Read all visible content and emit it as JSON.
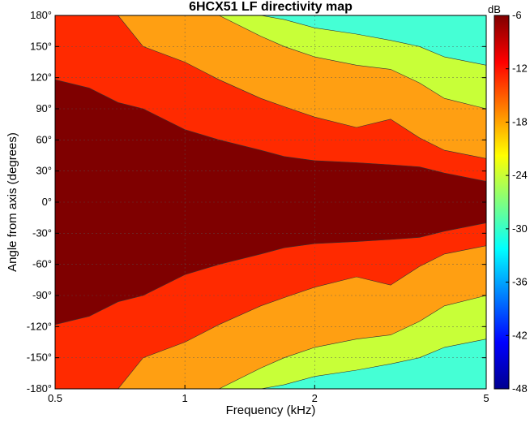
{
  "chart_data": {
    "type": "heatmap",
    "title": "6HCX51 LF directivity map",
    "xlabel": "Frequency (kHz)",
    "ylabel": "Angle from axis (degrees)",
    "xscale": "log",
    "xlim": [
      0.5,
      5
    ],
    "ylim": [
      -180,
      180
    ],
    "x_ticks": [
      0.5,
      1,
      2,
      5
    ],
    "x_tick_labels": [
      "0.5",
      "1",
      "2",
      "5"
    ],
    "y_ticks": [
      180,
      150,
      120,
      90,
      60,
      30,
      0,
      -30,
      -60,
      -90,
      -120,
      -150,
      -180
    ],
    "y_tick_labels": [
      "180°",
      "150°",
      "120°",
      "90°",
      "60°",
      "30°",
      "0°",
      "-30°",
      "-60°",
      "-90°",
      "-120°",
      "-150°",
      "-180°"
    ],
    "grid": true,
    "colorbar": {
      "label": "dB",
      "range": [
        -48,
        -6
      ],
      "ticks": [
        -6,
        -12,
        -18,
        -24,
        -30,
        -36,
        -42,
        -48
      ],
      "tick_labels": [
        "-6",
        "-12",
        "-18",
        "-24",
        "-30",
        "-36",
        "-42",
        "-48"
      ],
      "colormap": "jet"
    },
    "levels_db": [
      -6,
      -12,
      -18,
      -24,
      -30
    ],
    "level_colors": {
      "-6": "#7f0000",
      "-12": "#ff2a00",
      "-18": "#ff9f12",
      "-24": "#c8ff38",
      "-30": "#45ffd5"
    },
    "contour_boundaries_deg": {
      "freq_khz": [
        0.5,
        0.6,
        0.7,
        0.8,
        1.0,
        1.2,
        1.5,
        1.7,
        2.0,
        2.5,
        3.0,
        3.5,
        4.0,
        5.0
      ],
      "minus6": [
        118,
        110,
        96,
        90,
        70,
        60,
        50,
        44,
        40,
        38,
        36,
        34,
        28,
        20
      ],
      "minus12": [
        180,
        180,
        180,
        150,
        135,
        118,
        100,
        92,
        82,
        72,
        80,
        62,
        50,
        42
      ],
      "minus18": [
        180,
        180,
        180,
        180,
        180,
        180,
        160,
        150,
        140,
        132,
        128,
        115,
        100,
        90
      ],
      "minus24": [
        180,
        180,
        180,
        180,
        180,
        180,
        180,
        176,
        168,
        162,
        156,
        150,
        140,
        132
      ]
    }
  }
}
